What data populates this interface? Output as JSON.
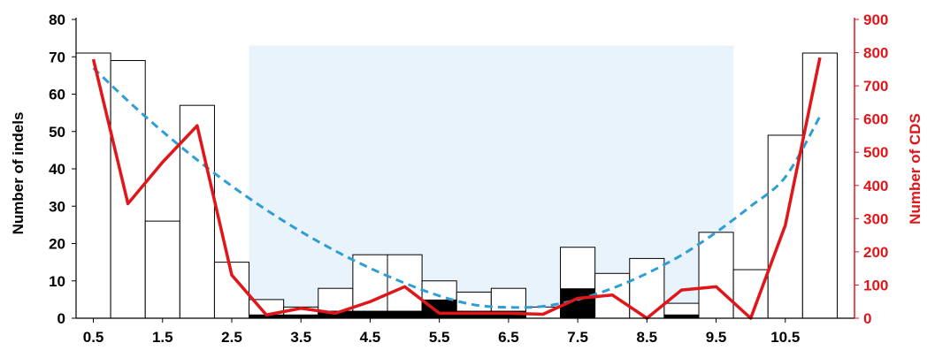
{
  "chart_data": {
    "type": "bar",
    "title": "",
    "ylabel_left": "Number of indels",
    "ylabel_right": "Number of CDS",
    "xlabel": "",
    "y_left_lim": [
      0,
      80
    ],
    "y_left_ticks": [
      0,
      10,
      20,
      30,
      40,
      50,
      60,
      70,
      80
    ],
    "y_right_lim": [
      0,
      900
    ],
    "y_right_ticks": [
      0,
      100,
      200,
      300,
      400,
      500,
      600,
      700,
      800,
      900
    ],
    "x_tick_labels": [
      "0.5",
      "1.5",
      "2.5",
      "3.5",
      "4.5",
      "5.5",
      "6.5",
      "7.5",
      "8.5",
      "9.5",
      "10.5"
    ],
    "x_tick_values": [
      0.5,
      1.5,
      2.5,
      3.5,
      4.5,
      5.5,
      6.5,
      7.5,
      8.5,
      9.5,
      10.5
    ],
    "x_lim": [
      0.25,
      11.5
    ],
    "bin_width": 0.5,
    "shaded_region": [
      2.75,
      9.75
    ],
    "shaded_color": "#e8f3fb",
    "series": [
      {
        "name": "",
        "kind": "bar",
        "axis": "left",
        "color": "#ffffff",
        "edge_color": "#000000",
        "x": [
          0.5,
          1.0,
          1.5,
          2.0,
          2.5,
          3.0,
          3.5,
          4.0,
          4.5,
          5.0,
          5.5,
          6.0,
          6.5,
          7.0,
          7.5,
          8.0,
          8.5,
          9.0,
          9.5,
          10.0,
          10.5,
          11.0
        ],
        "values": [
          71,
          69,
          26,
          57,
          15,
          5,
          3,
          8,
          17,
          17,
          10,
          7,
          8,
          3,
          19,
          12,
          16,
          4,
          23,
          13,
          49,
          71
        ]
      },
      {
        "name": "",
        "kind": "bar",
        "axis": "left",
        "color": "#000000",
        "x": [
          0.5,
          1.0,
          1.5,
          2.0,
          2.5,
          3.0,
          3.5,
          4.0,
          4.5,
          5.0,
          5.5,
          6.0,
          6.5,
          7.0,
          7.5,
          8.0,
          8.5,
          9.0,
          9.5,
          10.0,
          10.5,
          11.0
        ],
        "values": [
          0,
          0,
          0,
          0,
          0,
          1,
          1,
          2,
          2,
          2,
          5,
          2,
          2,
          0,
          8,
          0,
          0,
          1,
          0,
          0,
          0,
          0
        ]
      },
      {
        "name": "",
        "kind": "line",
        "axis": "right",
        "color": "#e0161b",
        "x": [
          0.5,
          1.0,
          1.5,
          2.0,
          2.5,
          3.0,
          3.5,
          4.0,
          4.5,
          5.0,
          5.5,
          6.0,
          6.5,
          7.0,
          7.5,
          8.0,
          8.5,
          9.0,
          9.5,
          10.0,
          10.5,
          11.0
        ],
        "values": [
          780,
          345,
          470,
          580,
          130,
          10,
          30,
          15,
          50,
          95,
          15,
          15,
          15,
          12,
          60,
          70,
          0,
          85,
          95,
          0,
          280,
          785
        ]
      },
      {
        "name": "",
        "kind": "trend",
        "axis": "left",
        "color": "#2f9ed4",
        "x": [
          0.5,
          1.0,
          1.5,
          2.0,
          2.5,
          3.0,
          3.5,
          4.0,
          4.5,
          5.0,
          5.5,
          6.0,
          6.5,
          7.0,
          7.5,
          8.0,
          8.5,
          9.0,
          9.5,
          10.0,
          10.5,
          11.0
        ],
        "values": [
          67,
          58.2,
          50,
          42.4,
          35.4,
          29,
          23.2,
          18,
          13.4,
          9.4,
          6,
          3.6,
          2.9,
          3.2,
          5,
          8,
          12,
          16.9,
          23,
          30,
          37.8,
          54
        ]
      }
    ]
  }
}
